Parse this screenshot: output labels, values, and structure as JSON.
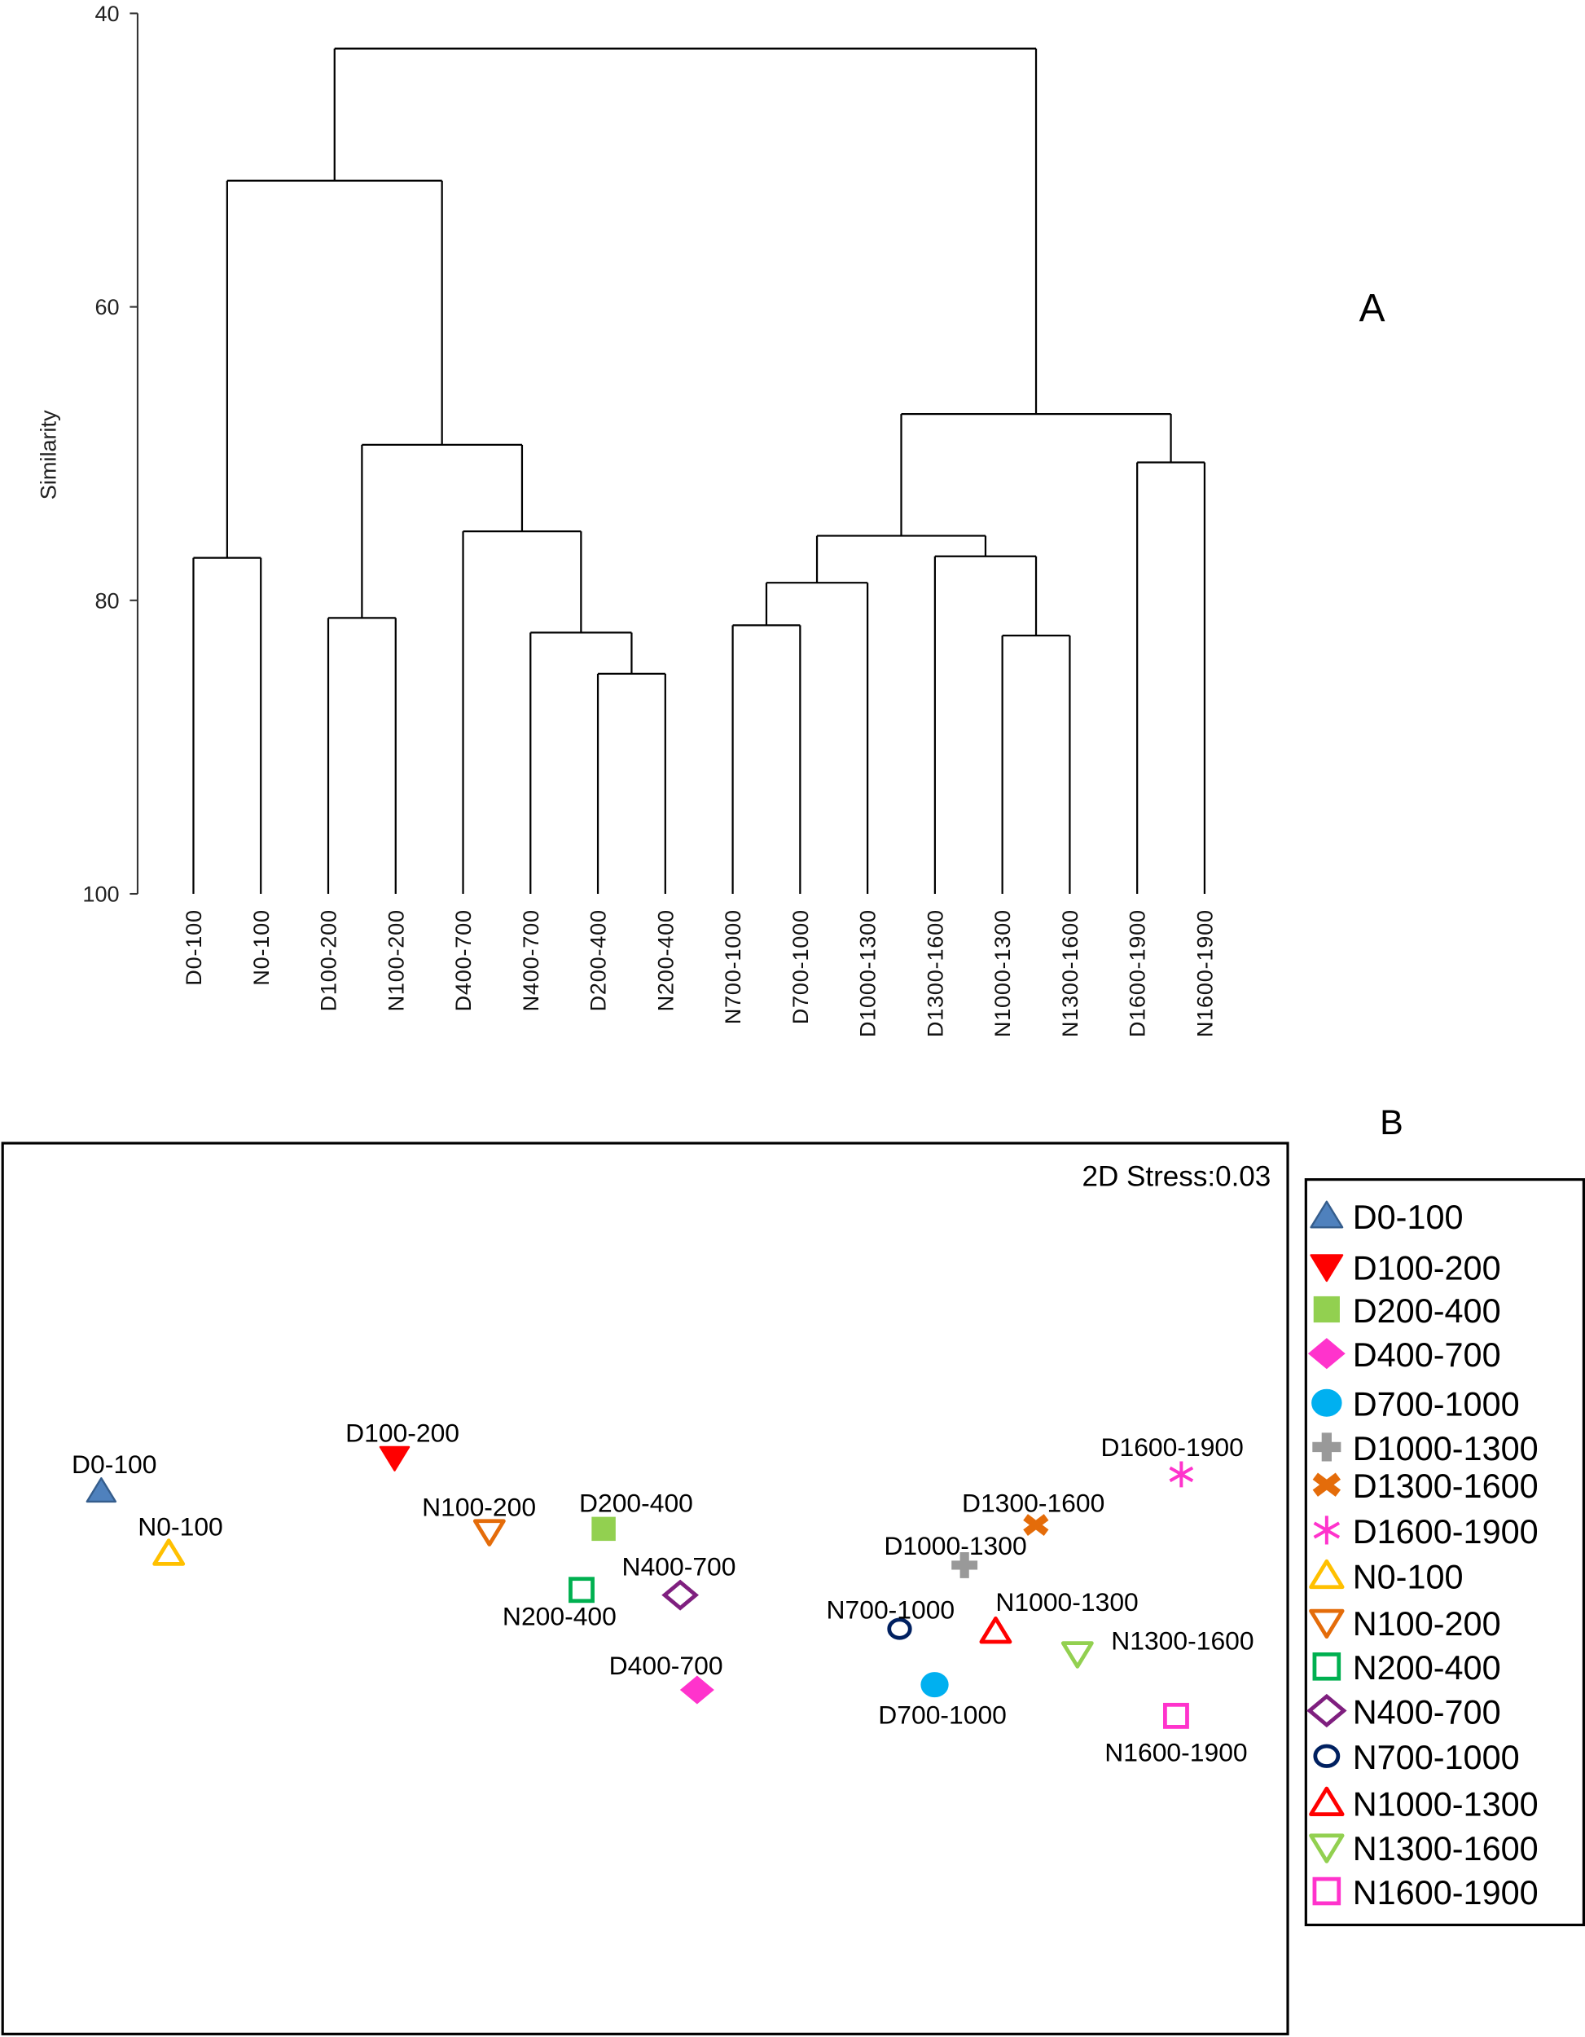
{
  "chart_data": [
    {
      "type": "dendrogram",
      "panel_label": "A",
      "ylabel": "Similarity",
      "ylim": [
        40,
        100
      ],
      "yticks": [
        "40",
        "60",
        "80",
        "100"
      ],
      "leaves": [
        "D0-100",
        "N0-100",
        "D100-200",
        "N100-200",
        "D400-700",
        "N400-700",
        "D200-400",
        "N200-400",
        "N700-1000",
        "D700-1000",
        "D1000-1300",
        "D1300-1600",
        "N1000-1300",
        "N1300-1600",
        "D1600-1900",
        "N1600-1900"
      ],
      "merges": [
        {
          "children": [
            0,
            1
          ],
          "similarity": 77.1
        },
        {
          "children": [
            2,
            3
          ],
          "similarity": 81.2
        },
        {
          "children": [
            6,
            7
          ],
          "similarity": 85.0
        },
        {
          "children": [
            5,
            18
          ],
          "similarity": 82.2
        },
        {
          "children": [
            4,
            19
          ],
          "similarity": 75.3
        },
        {
          "children": [
            17,
            20
          ],
          "similarity": 69.4
        },
        {
          "children": [
            16,
            21
          ],
          "similarity": 51.4
        },
        {
          "children": [
            8,
            9
          ],
          "similarity": 81.7
        },
        {
          "children": [
            10,
            23
          ],
          "similarity": 78.8
        },
        {
          "children": [
            12,
            13
          ],
          "similarity": 82.4
        },
        {
          "children": [
            11,
            25
          ],
          "similarity": 77.0
        },
        {
          "children": [
            24,
            26
          ],
          "similarity": 75.6
        },
        {
          "children": [
            14,
            15
          ],
          "similarity": 70.6
        },
        {
          "children": [
            27,
            28
          ],
          "similarity": 67.3
        },
        {
          "children": [
            22,
            29
          ],
          "similarity": 42.4
        }
      ]
    },
    {
      "type": "scatter",
      "panel_label": "B",
      "annotation": "2D Stress:0.03",
      "legend_position": "right",
      "points": [
        {
          "name": "D0-100",
          "x": -4.22,
          "y": 0.52,
          "marker": "triangle-up-filled",
          "color": "#4f81bd",
          "stroke": "#355d8c"
        },
        {
          "name": "D100-200",
          "x": -1.96,
          "y": 0.78,
          "marker": "triangle-down-filled",
          "color": "#ff0000",
          "stroke": "#ff0000"
        },
        {
          "name": "D200-400",
          "x": -0.35,
          "y": 0.23,
          "marker": "square-filled",
          "color": "#92d050",
          "stroke": "#92d050"
        },
        {
          "name": "D400-700",
          "x": 0.37,
          "y": -1.01,
          "marker": "diamond-filled",
          "color": "#ff33cc",
          "stroke": "#ff33cc"
        },
        {
          "name": "D700-1000",
          "x": 2.2,
          "y": -0.97,
          "marker": "circle-filled",
          "color": "#00b0f0",
          "stroke": "#00b0f0"
        },
        {
          "name": "D1000-1300",
          "x": 2.43,
          "y": -0.05,
          "marker": "plus",
          "color": "#999999",
          "stroke": "#999999"
        },
        {
          "name": "D1300-1600",
          "x": 2.98,
          "y": 0.26,
          "marker": "x",
          "color": "#e46c0a",
          "stroke": "#e46c0a"
        },
        {
          "name": "D1600-1900",
          "x": 4.1,
          "y": 0.65,
          "marker": "asterisk",
          "color": "#ff33cc",
          "stroke": "#ff33cc"
        },
        {
          "name": "N0-100",
          "x": -3.7,
          "y": 0.04,
          "marker": "triangle-up-open",
          "color": "#ffc000",
          "stroke": "#ffc000"
        },
        {
          "name": "N100-200",
          "x": -1.23,
          "y": 0.21,
          "marker": "triangle-down-open",
          "color": "#e46c0a",
          "stroke": "#e46c0a"
        },
        {
          "name": "N200-400",
          "x": -0.52,
          "y": -0.24,
          "marker": "square-open",
          "color": "#00b050",
          "stroke": "#00b050"
        },
        {
          "name": "N400-700",
          "x": 0.24,
          "y": -0.28,
          "marker": "diamond-open",
          "color": "#7f1f7f",
          "stroke": "#7f1f7f"
        },
        {
          "name": "N700-1000",
          "x": 1.93,
          "y": -0.54,
          "marker": "circle-open",
          "color": "#002060",
          "stroke": "#002060"
        },
        {
          "name": "N1000-1300",
          "x": 2.67,
          "y": -0.56,
          "marker": "triangle-up-open",
          "color": "#ff0000",
          "stroke": "#ff0000"
        },
        {
          "name": "N1300-1600",
          "x": 3.3,
          "y": -0.73,
          "marker": "triangle-down-open",
          "color": "#92d050",
          "stroke": "#92d050"
        },
        {
          "name": "N1600-1900",
          "x": 4.06,
          "y": -1.21,
          "marker": "square-open",
          "color": "#ff33cc",
          "stroke": "#ff33cc"
        }
      ],
      "xlim": [
        -5.0,
        4.92
      ],
      "ylim": [
        -3.66,
        3.2
      ]
    }
  ]
}
